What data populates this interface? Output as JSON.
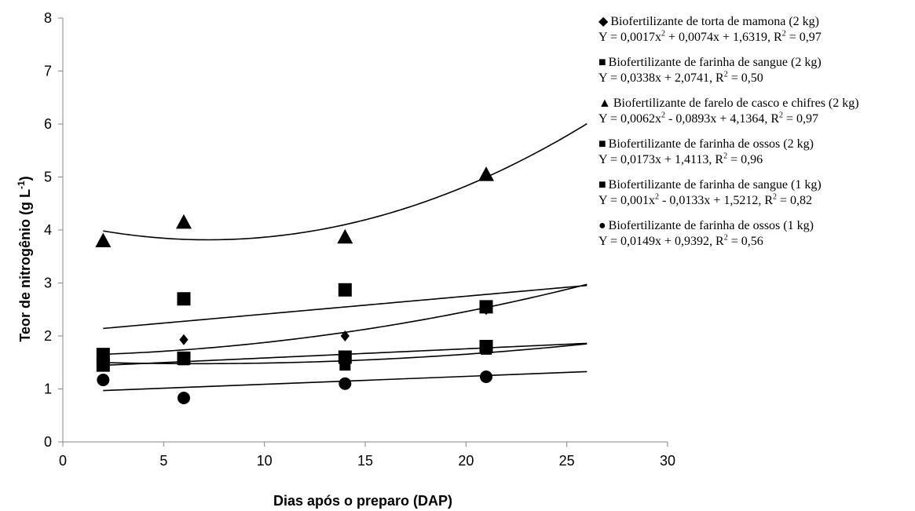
{
  "chart_data": {
    "type": "scatter",
    "xlabel": "Dias após o preparo (DAP)",
    "ylabel_main": "Teor de nitrogênio (g L",
    "ylabel_sup": "-1",
    "ylabel_close": ")",
    "xlim": [
      0,
      30
    ],
    "ylim": [
      0,
      8
    ],
    "xticks": [
      "0",
      "5",
      "10",
      "15",
      "20",
      "25",
      "30"
    ],
    "yticks": [
      "0",
      "1",
      "2",
      "3",
      "4",
      "5",
      "6",
      "7",
      "8"
    ],
    "grid": false,
    "legend_position": "right",
    "series": [
      {
        "name": "Biofertilizante de torta de mamona (2 kg)",
        "marker": "diamond",
        "marker_size": 14,
        "x": [
          2,
          6,
          14,
          21
        ],
        "y": [
          1.65,
          1.93,
          2.0,
          2.5
        ],
        "equation": "Y = 0,0017x² + 0,0074x + 1,6319, R² = 0,97",
        "fit": {
          "type": "poly2",
          "a": 0.0017,
          "b": 0.0074,
          "c": 1.6319
        }
      },
      {
        "name": "Biofertilizante de farinha de sangue (2 kg)",
        "marker": "square",
        "marker_size": 17,
        "x": [
          2,
          6,
          14,
          21
        ],
        "y": [
          1.65,
          2.7,
          2.87,
          2.55
        ],
        "equation": "Y = 0,0338x + 2,0741, R² = 0,50",
        "fit": {
          "type": "linear",
          "a": 0.0338,
          "b": 2.0741
        }
      },
      {
        "name": "Biofertilizante de farelo de casco e chifres (2 kg)",
        "marker": "triangle",
        "marker_size": 20,
        "x": [
          2,
          6,
          14,
          21
        ],
        "y": [
          3.8,
          4.15,
          3.87,
          5.05
        ],
        "equation": "Y = 0,0062x² - 0,0893x + 4,1364, R² = 0,97",
        "fit": {
          "type": "poly2",
          "a": 0.0062,
          "b": -0.0893,
          "c": 4.1364
        }
      },
      {
        "name": "Biofertilizante de farinha de ossos (2 kg)",
        "marker": "square",
        "marker_size": 17,
        "x": [
          2,
          6,
          14,
          21
        ],
        "y": [
          1.45,
          1.58,
          1.6,
          1.8
        ],
        "equation": "Y = 0,0173x + 1,4113, R² = 0,96",
        "fit": {
          "type": "linear",
          "a": 0.0173,
          "b": 1.4113
        }
      },
      {
        "name": "Biofertilizante de farinha de sangue (1 kg)",
        "marker": "square",
        "marker_size": 14,
        "x": [
          2,
          6,
          14,
          21
        ],
        "y": [
          1.6,
          1.55,
          1.45,
          1.75
        ],
        "equation": "Y = 0,001x² - 0,0133x + 1,5212, R² = 0,82",
        "fit": {
          "type": "poly2",
          "a": 0.001,
          "b": -0.0133,
          "c": 1.5212
        }
      },
      {
        "name": "Biofertilizante de farinha de ossos (1 kg)",
        "marker": "circle",
        "marker_size": 16,
        "x": [
          2,
          6,
          14,
          21
        ],
        "y": [
          1.17,
          0.83,
          1.1,
          1.23
        ],
        "equation": "Y = 0,0149x + 0,9392, R² = 0,56",
        "fit": {
          "type": "linear",
          "a": 0.0149,
          "b": 0.9392
        }
      }
    ]
  },
  "legend": [
    {
      "symbol": "◆",
      "name": "Biofertilizante de torta de mamona (2 kg)",
      "eq": [
        "Y = 0,0017x",
        "2",
        " + 0,0074x + 1,6319, R",
        "2",
        " = 0,97"
      ]
    },
    {
      "symbol": "■",
      "name": "Biofertilizante de farinha de sangue (2 kg)",
      "eq": [
        "Y = 0,0338x + 2,0741, R",
        "2",
        " = 0,50"
      ]
    },
    {
      "symbol": "▲",
      "name": "Biofertilizante de farelo de casco e chifres (2 kg)",
      "eq": [
        "Y = 0,0062x",
        "2",
        " - 0,0893x + 4,1364, R",
        "2",
        " = 0,97"
      ]
    },
    {
      "symbol": "■",
      "name": "Biofertilizante de farinha de ossos (2 kg)",
      "eq": [
        "Y = 0,0173x + 1,4113, R",
        "2",
        " = 0,96"
      ]
    },
    {
      "symbol": "■",
      "name": "Biofertilizante de farinha de sangue (1 kg)",
      "eq": [
        "Y = 0,001x",
        "2",
        " - 0,0133x + 1,5212, R",
        "2",
        " = 0,82"
      ]
    },
    {
      "symbol": "●",
      "name": "Biofertilizante de farinha de ossos (1 kg)",
      "eq": [
        "Y = 0,0149x + 0,9392, R",
        "2",
        " = 0,56"
      ]
    }
  ],
  "colors": {
    "axis": "#868686",
    "marker": "#000000",
    "trend": "#000000"
  }
}
